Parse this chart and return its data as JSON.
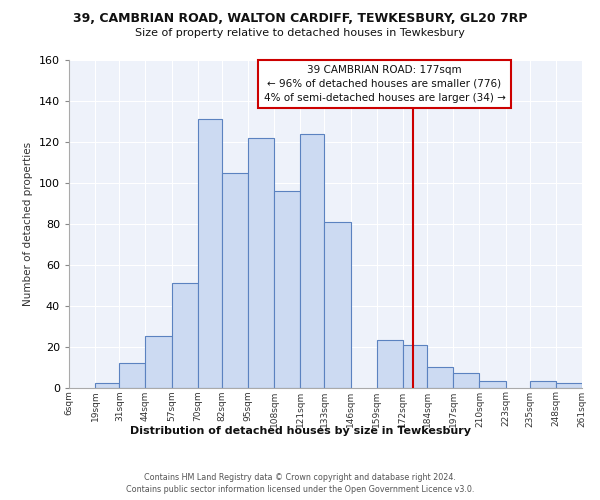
{
  "title_line1": "39, CAMBRIAN ROAD, WALTON CARDIFF, TEWKESBURY, GL20 7RP",
  "title_line2": "Size of property relative to detached houses in Tewkesbury",
  "xlabel": "Distribution of detached houses by size in Tewkesbury",
  "ylabel": "Number of detached properties",
  "bin_edges": [
    6,
    19,
    31,
    44,
    57,
    70,
    82,
    95,
    108,
    121,
    133,
    146,
    159,
    172,
    184,
    197,
    210,
    223,
    235,
    248,
    261
  ],
  "bin_labels": [
    "6sqm",
    "19sqm",
    "31sqm",
    "44sqm",
    "57sqm",
    "70sqm",
    "82sqm",
    "95sqm",
    "108sqm",
    "121sqm",
    "133sqm",
    "146sqm",
    "159sqm",
    "172sqm",
    "184sqm",
    "197sqm",
    "210sqm",
    "223sqm",
    "235sqm",
    "248sqm",
    "261sqm"
  ],
  "counts": [
    0,
    2,
    12,
    25,
    51,
    131,
    105,
    122,
    96,
    124,
    81,
    0,
    23,
    21,
    10,
    7,
    3,
    0,
    3,
    2
  ],
  "bar_fill_color": "#ccdaf2",
  "bar_edge_color": "#5b82c0",
  "vline_x": 177,
  "vline_color": "#cc0000",
  "ylim": [
    0,
    160
  ],
  "yticks": [
    0,
    20,
    40,
    60,
    80,
    100,
    120,
    140,
    160
  ],
  "annotation_title": "39 CAMBRIAN ROAD: 177sqm",
  "annotation_line1": "← 96% of detached houses are smaller (776)",
  "annotation_line2": "4% of semi-detached houses are larger (34) →",
  "footer_line1": "Contains HM Land Registry data © Crown copyright and database right 2024.",
  "footer_line2": "Contains public sector information licensed under the Open Government Licence v3.0.",
  "background_color": "#ffffff",
  "plot_bg_color": "#eef2fa",
  "grid_color": "#ffffff"
}
